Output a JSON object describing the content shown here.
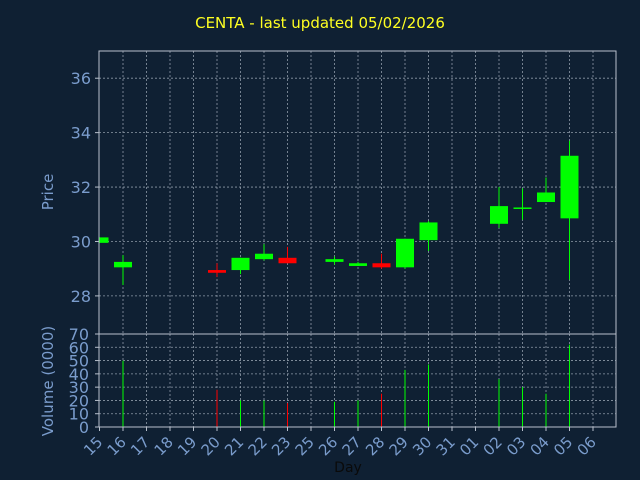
{
  "chart_data": [
    {
      "type": "candlestick",
      "title": "CENTA - last updated 05/02/2026",
      "ylabel": "Price",
      "ylim": [
        26.6,
        37.0
      ],
      "yticks": [
        28,
        30,
        32,
        34,
        36
      ],
      "grid": true,
      "categories": [
        "15",
        "16",
        "17",
        "18",
        "19",
        "20",
        "21",
        "22",
        "23",
        "25",
        "26",
        "27",
        "28",
        "29",
        "30",
        "31",
        "01",
        "02",
        "03",
        "04",
        "05",
        "06"
      ],
      "candles": [
        {
          "x": "15",
          "open": 29.95,
          "high": 30.15,
          "low": 29.95,
          "close": 30.15,
          "dir": "up"
        },
        {
          "x": "16",
          "open": 29.05,
          "high": 29.5,
          "low": 28.4,
          "close": 29.25,
          "dir": "up"
        },
        {
          "x": "20",
          "open": 28.95,
          "high": 29.2,
          "low": 28.7,
          "close": 28.85,
          "dir": "down"
        },
        {
          "x": "21",
          "open": 28.95,
          "high": 29.4,
          "low": 28.8,
          "close": 29.4,
          "dir": "up"
        },
        {
          "x": "22",
          "open": 29.35,
          "high": 29.9,
          "low": 29.3,
          "close": 29.55,
          "dir": "up"
        },
        {
          "x": "23",
          "open": 29.4,
          "high": 29.8,
          "low": 29.2,
          "close": 29.2,
          "dir": "down"
        },
        {
          "x": "26",
          "open": 29.25,
          "high": 29.45,
          "low": 29.15,
          "close": 29.35,
          "dir": "up"
        },
        {
          "x": "27",
          "open": 29.1,
          "high": 29.25,
          "low": 29.1,
          "close": 29.2,
          "dir": "up"
        },
        {
          "x": "28",
          "open": 29.2,
          "high": 29.55,
          "low": 29.0,
          "close": 29.05,
          "dir": "down"
        },
        {
          "x": "29",
          "open": 29.05,
          "high": 30.1,
          "low": 29.0,
          "close": 30.1,
          "dir": "up"
        },
        {
          "x": "30",
          "open": 30.05,
          "high": 30.75,
          "low": 29.65,
          "close": 30.7,
          "dir": "up"
        },
        {
          "x": "02",
          "open": 30.65,
          "high": 32.0,
          "low": 30.5,
          "close": 31.3,
          "dir": "up"
        },
        {
          "x": "03",
          "open": 31.2,
          "high": 31.95,
          "low": 30.8,
          "close": 31.25,
          "dir": "up"
        },
        {
          "x": "04",
          "open": 31.45,
          "high": 32.35,
          "low": 31.45,
          "close": 31.8,
          "dir": "up"
        },
        {
          "x": "05",
          "open": 30.85,
          "high": 33.7,
          "low": 28.6,
          "close": 33.15,
          "dir": "up"
        }
      ]
    },
    {
      "type": "bar",
      "ylabel": "Volume (0000)",
      "xlabel": "Day",
      "ylim": [
        0,
        70
      ],
      "yticks": [
        0,
        10,
        20,
        30,
        40,
        50,
        60,
        70
      ],
      "grid": true,
      "categories": [
        "15",
        "16",
        "17",
        "18",
        "19",
        "20",
        "21",
        "22",
        "23",
        "25",
        "26",
        "27",
        "28",
        "29",
        "30",
        "31",
        "01",
        "02",
        "03",
        "04",
        "05",
        "06"
      ],
      "bars": [
        {
          "x": "16",
          "value": 50,
          "dir": "up"
        },
        {
          "x": "20",
          "value": 28,
          "dir": "down"
        },
        {
          "x": "21",
          "value": 20,
          "dir": "up"
        },
        {
          "x": "22",
          "value": 20,
          "dir": "up"
        },
        {
          "x": "23",
          "value": 18,
          "dir": "down"
        },
        {
          "x": "26",
          "value": 19,
          "dir": "up"
        },
        {
          "x": "27",
          "value": 20,
          "dir": "up"
        },
        {
          "x": "28",
          "value": 25,
          "dir": "down"
        },
        {
          "x": "29",
          "value": 43,
          "dir": "up"
        },
        {
          "x": "30",
          "value": 47,
          "dir": "up"
        },
        {
          "x": "02",
          "value": 36,
          "dir": "up"
        },
        {
          "x": "03",
          "value": 30,
          "dir": "up"
        },
        {
          "x": "04",
          "value": 25,
          "dir": "up"
        },
        {
          "x": "05",
          "value": 62,
          "dir": "up"
        }
      ]
    }
  ],
  "colors": {
    "background": "#0f2033",
    "axes": "#b8c0cc",
    "grid": "#8e9aa8",
    "label": "#7a9ccc",
    "title": "#ffff22",
    "up": "#00ff00",
    "down": "#ff0000"
  }
}
